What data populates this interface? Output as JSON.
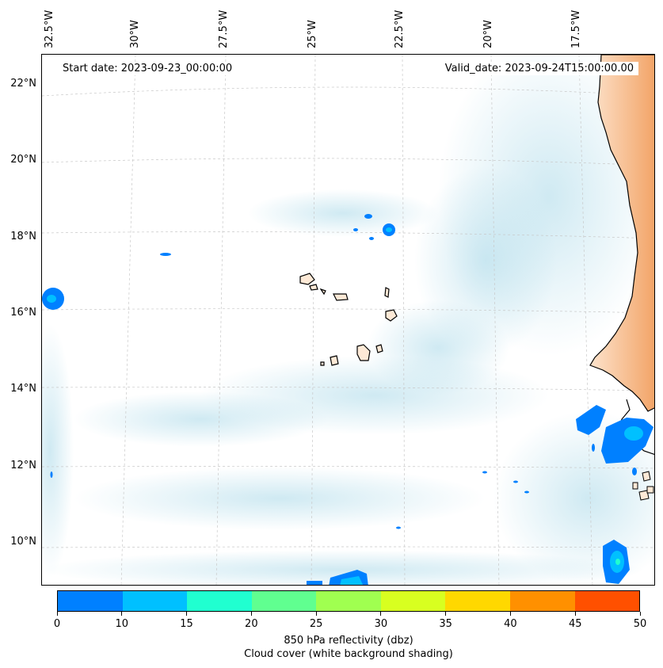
{
  "map": {
    "start_date": "Start date: 2023-09-23_00:00:00",
    "valid_date": "Valid_date: 2023-09-24T15:00:00.00",
    "lon_labels": [
      "32.5°W",
      "30°W",
      "27.5°W",
      "25°W",
      "22.5°W",
      "20°W",
      "17.5°W"
    ],
    "lat_labels": [
      "22°N",
      "20°N",
      "18°N",
      "16°N",
      "14°N",
      "12°N",
      "10°N"
    ],
    "land_color": "#f4a261",
    "cloud_color": "#a8d8e8",
    "coast_color": "#000000"
  },
  "colorbar": {
    "colors": [
      "#0080ff",
      "#00c0ff",
      "#20ffd0",
      "#60ff90",
      "#a0ff50",
      "#d8ff20",
      "#ffd800",
      "#ff9000",
      "#ff5000"
    ],
    "ticks": [
      "0",
      "10",
      "15",
      "20",
      "25",
      "30",
      "35",
      "40",
      "45",
      "50"
    ],
    "label_1": "850 hPa reflectivity (dbz)",
    "label_2": "Cloud cover (white background shading)"
  }
}
